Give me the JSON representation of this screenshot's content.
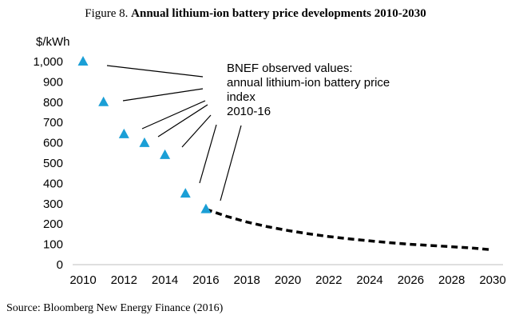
{
  "figure": {
    "prefix": "Figure 8.",
    "title": "Annual lithium-ion battery price developments 2010-2030"
  },
  "source": "Source: Bloomberg New Energy Finance (2016)",
  "chart_data": {
    "type": "line",
    "title": "Annual lithium-ion battery price developments 2010-2030",
    "ylabel": "$/kWh",
    "xlabel": "",
    "xlim": [
      2010,
      2030
    ],
    "ylim": [
      0,
      1000
    ],
    "x_ticks": [
      "2010",
      "2012",
      "2014",
      "2016",
      "2018",
      "2020",
      "2022",
      "2024",
      "2026",
      "2028",
      "2030"
    ],
    "y_ticks": [
      "0",
      "100",
      "200",
      "300",
      "400",
      "500",
      "600",
      "700",
      "800",
      "900",
      "1,000"
    ],
    "grid": false,
    "annotation": [
      "BNEF observed values:",
      "annual lithium-ion battery price",
      "index",
      "2010-16"
    ],
    "series": [
      {
        "marker": "triangle",
        "color": "#1b9fd6",
        "x": [
          2010,
          2011,
          2012,
          2013,
          2014,
          2015,
          2016
        ],
        "y": [
          1000,
          800,
          642,
          599,
          540,
          350,
          273
        ]
      },
      {
        "style": "dashed",
        "color": "#000000",
        "x": [
          2016,
          2017,
          2018,
          2019,
          2020,
          2021,
          2022,
          2023,
          2024,
          2025,
          2026,
          2027,
          2028,
          2029,
          2030
        ],
        "y": [
          273,
          238,
          210,
          187,
          168,
          152,
          138,
          127,
          117,
          108,
          100,
          94,
          88,
          82,
          73
        ]
      }
    ]
  }
}
